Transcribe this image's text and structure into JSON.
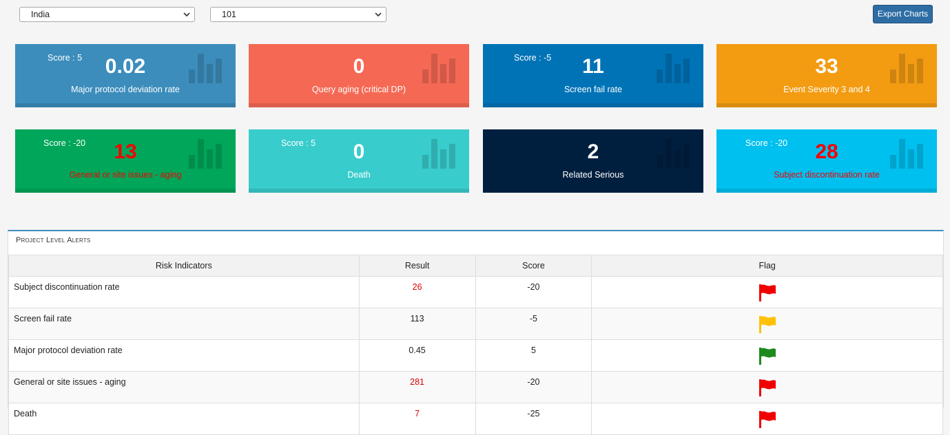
{
  "filters": {
    "country": "India",
    "site": "101"
  },
  "toolbar": {
    "export_label": "Export Charts"
  },
  "cards": [
    {
      "score": "Score : 5",
      "value": "0.02",
      "label": "Major protocol deviation rate",
      "color": "#3c8dbc"
    },
    {
      "score": "",
      "value": "0",
      "label": "Query aging (critical DP)",
      "color": "#f56954"
    },
    {
      "score": "Score : -5",
      "value": "11",
      "label": "Screen fail rate",
      "color": "#0073b7"
    },
    {
      "score": "",
      "value": "33",
      "label": "Event Severity 3 and 4",
      "color": "#f39c12"
    },
    {
      "score": "Score : -20",
      "value": "13",
      "label": "General or site issues - aging",
      "color": "#00a65a"
    },
    {
      "score": "Score : 5",
      "value": "0",
      "label": "Death",
      "color": "#39cccc"
    },
    {
      "score": "",
      "value": "2",
      "label": "Related Serious",
      "color": "#001f3f"
    },
    {
      "score": "Score : -20",
      "value": "28",
      "label": "Subject discontinuation rate",
      "color": "#00c0ef"
    }
  ],
  "alerts": {
    "title": "Project Level Alerts",
    "columns": [
      "Risk Indicators",
      "Result",
      "Score",
      "Flag"
    ],
    "rows": [
      {
        "indicator": "Subject discontinuation rate",
        "result": "26",
        "score": "-20",
        "flag": "red-flag-icon",
        "flag_color": "#f00000"
      },
      {
        "indicator": "Screen fail rate",
        "result": "113",
        "score": "-5",
        "flag": "yellow-flag-icon",
        "flag_color": "#ffc107"
      },
      {
        "indicator": "Major protocol deviation rate",
        "result": "0.45",
        "score": "5",
        "flag": "green-flag-icon",
        "flag_color": "#1e8a1e"
      },
      {
        "indicator": "General or site issues - aging",
        "result": "281",
        "score": "-20",
        "flag": "red-flag-icon",
        "flag_color": "#f00000"
      },
      {
        "indicator": "Death",
        "result": "7",
        "score": "-25",
        "flag": "red-flag-icon",
        "flag_color": "#f00000"
      }
    ]
  }
}
